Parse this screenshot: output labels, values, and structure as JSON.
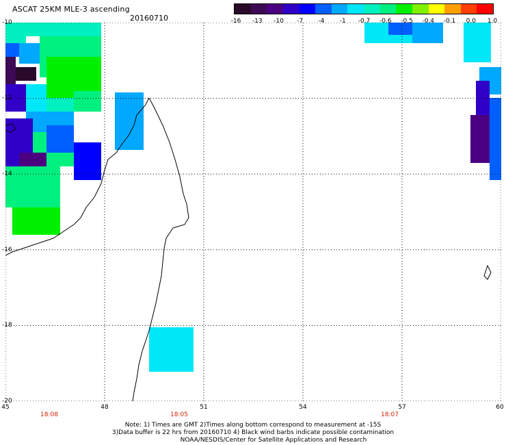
{
  "header": {
    "title": "ASCAT 25KM MLE-3 ascending",
    "date": "20160710"
  },
  "colorbar": {
    "tick_labels": [
      "-16",
      "-13",
      "-10",
      "-7",
      "-4",
      "-1",
      "-0.7",
      "-0.6",
      "-0.5",
      "-0.4",
      "-0.1",
      "0.0",
      "1.0"
    ],
    "colors": [
      "#2a0a2a",
      "#3d0a55",
      "#4b0082",
      "#3000c8",
      "#0000ff",
      "#0060ff",
      "#00a8ff",
      "#00e8f8",
      "#00f0c0",
      "#00f080",
      "#00f000",
      "#80f000",
      "#ffff00",
      "#ffa000",
      "#ff4000",
      "#ff0000"
    ]
  },
  "map": {
    "lat_labels": [
      "-10",
      "-12",
      "-14",
      "-16",
      "-18",
      "-20"
    ],
    "lon_labels": [
      "45",
      "48",
      "51",
      "54",
      "57",
      "60"
    ],
    "time_labels": [
      "18:08",
      "18:05",
      "18:07"
    ],
    "lon_range": [
      45,
      60
    ],
    "lat_range": [
      -20,
      -10
    ]
  },
  "footer": {
    "line1": "Note: 1) Times are GMT 2)Times along bottom correspond to measurement at -15S",
    "line2": "3)Data buffer is 22 hrs from 20160710 4) Black wind barbs indicate possible contamination",
    "line3": "NOAA/NESDIS/Center for Satellite Applications and Research"
  }
}
